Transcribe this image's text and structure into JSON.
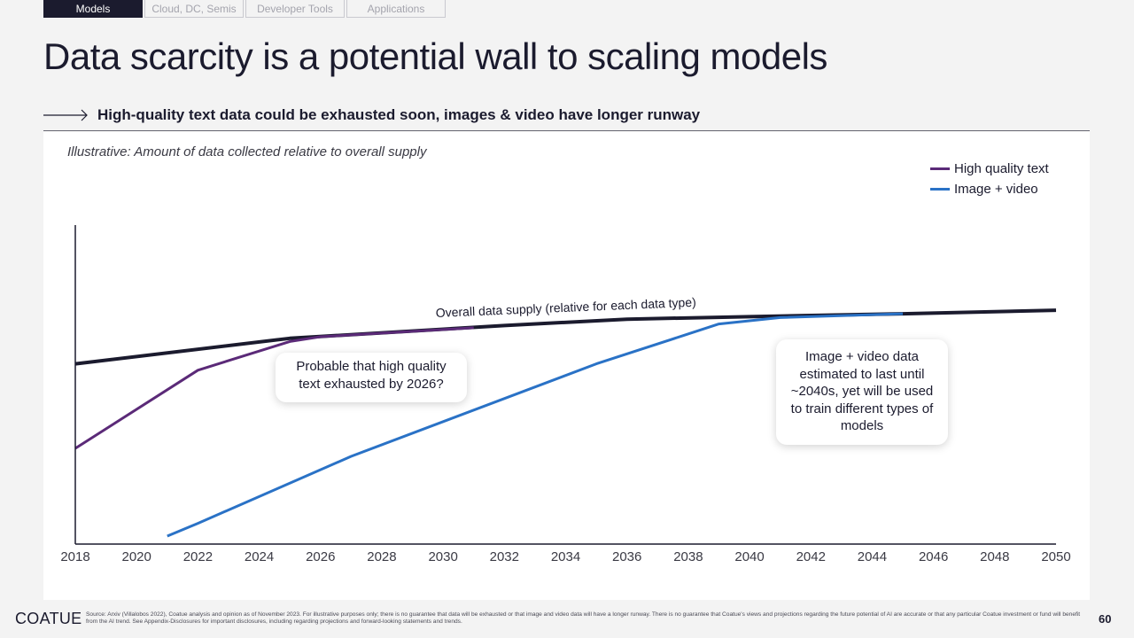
{
  "nav": {
    "tabs": [
      {
        "label": "Models",
        "active": true
      },
      {
        "label": "Cloud, DC, Semis",
        "active": false
      },
      {
        "label": "Developer Tools",
        "active": false
      },
      {
        "label": "Applications",
        "active": false
      }
    ]
  },
  "slide": {
    "title": "Data scarcity is a potential wall to scaling models",
    "subtitle": "High-quality text data could be exhausted soon, images & video have longer runway",
    "note": "Illustrative: Amount of data collected relative to overall supply"
  },
  "callouts": {
    "text": "Probable that high quality text exhausted by 2026?",
    "image": "Image + video data estimated to last until ~2040s, yet will be used to train different types of models"
  },
  "chart_data": {
    "type": "line",
    "title": "",
    "xlabel": "",
    "ylabel": "",
    "xlim": [
      2018,
      2050
    ],
    "ylim": [
      0,
      100
    ],
    "x_ticks": [
      "2018",
      "2020",
      "2022",
      "2024",
      "2026",
      "2028",
      "2030",
      "2032",
      "2034",
      "2036",
      "2038",
      "2040",
      "2042",
      "2044",
      "2046",
      "2048",
      "2050"
    ],
    "annotation": "Overall data supply (relative for each data type)",
    "series": [
      {
        "name": "Overall data supply",
        "color": "#1b1b2e",
        "legend": false,
        "x": [
          2018,
          2025,
          2032,
          2036,
          2040,
          2045,
          2050
        ],
        "y": [
          56.5,
          64.5,
          68.5,
          70.5,
          71.3,
          72.2,
          73.3
        ]
      },
      {
        "name": "High quality text",
        "color": "#5b2a78",
        "legend": true,
        "x": [
          2018,
          2022,
          2025,
          2026,
          2031
        ],
        "y": [
          30.0,
          54.5,
          63.5,
          65.0,
          67.8
        ]
      },
      {
        "name": "Image + video",
        "color": "#2a72c6",
        "legend": true,
        "x": [
          2021,
          2022,
          2027,
          2035,
          2039,
          2041,
          2045
        ],
        "y": [
          2.5,
          6.5,
          27.5,
          56.5,
          69.0,
          71.0,
          72.2
        ]
      }
    ]
  },
  "footer": {
    "brand": "COATUE",
    "source": "Source: Arxiv (Villalobos 2022), Coatue analysis and opinion as of November 2023. For illustrative purposes only; there is no guarantee that data will be exhausted or that image and video data will have a longer runway. There is no guarantee that Coatue's views and projections regarding the future potential of AI are accurate or that any particular Coatue investment or fund will benefit from the AI trend. See Appendix-Disclosures for important disclosures, including regarding projections and forward-looking statements and trends.",
    "page": "60"
  }
}
